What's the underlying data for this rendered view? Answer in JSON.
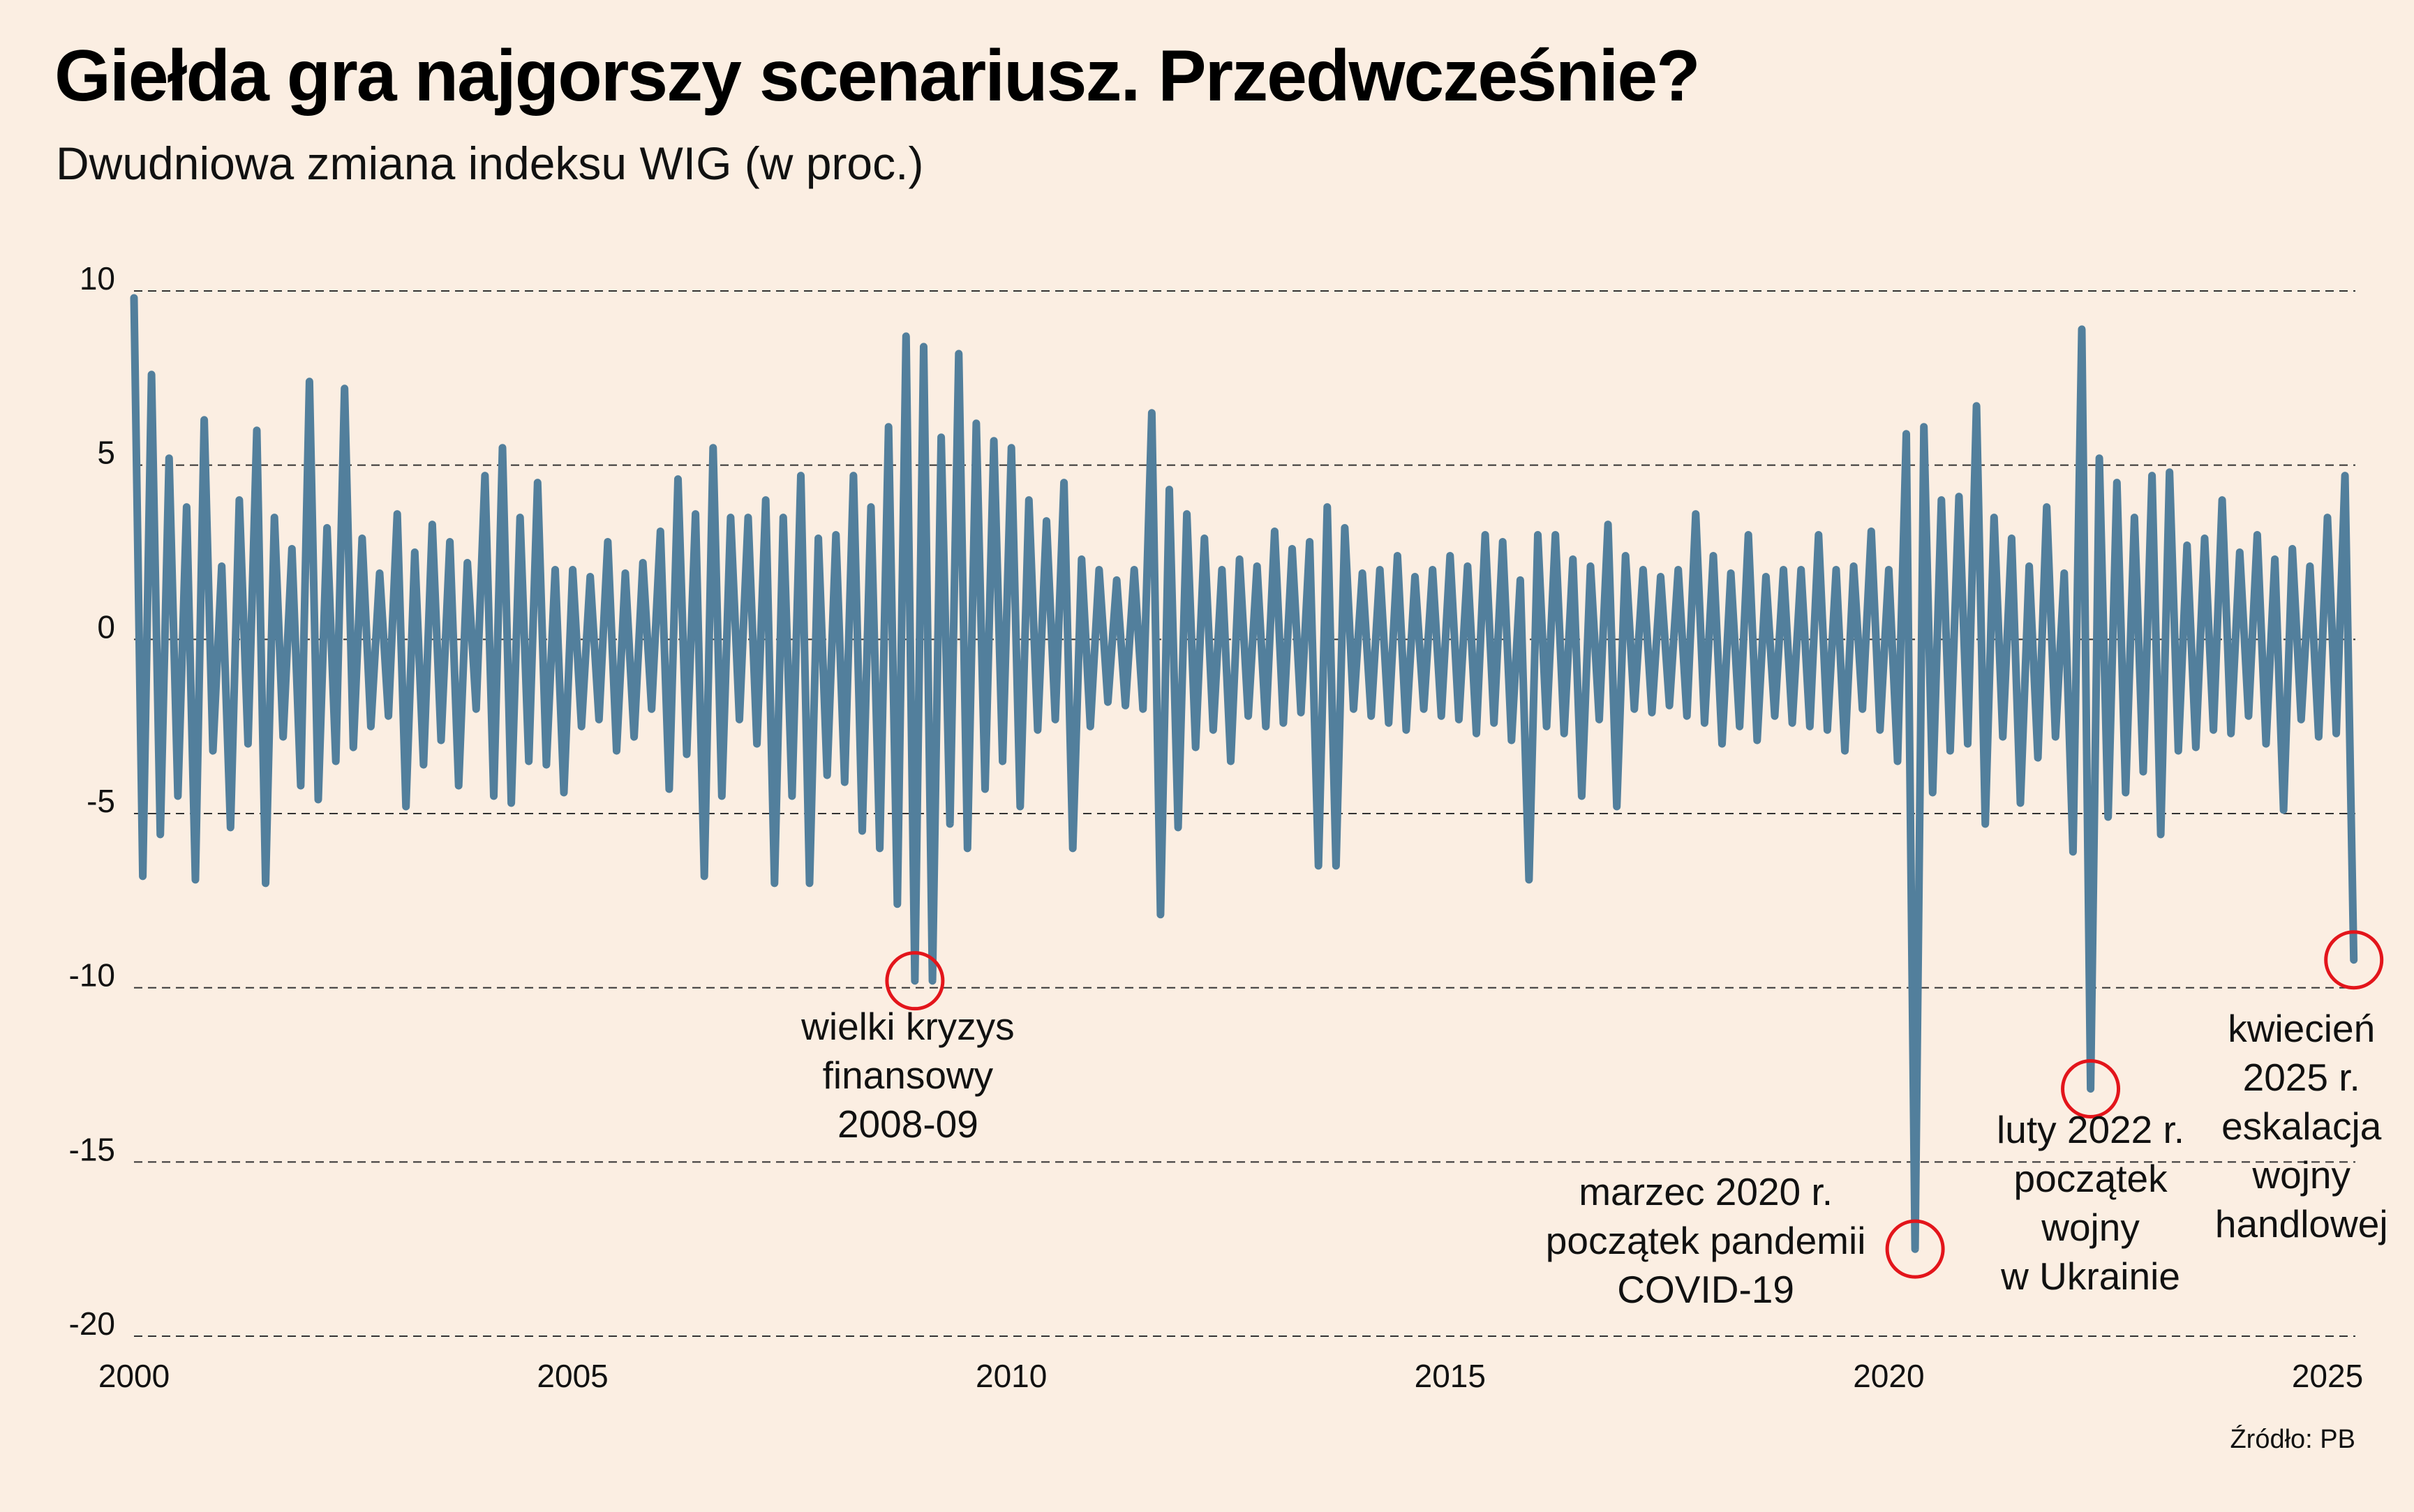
{
  "chart_data": {
    "type": "line",
    "title": "Giełda gra najgorszy scenariusz. Przedwcześnie?",
    "subtitle": "Dwudniowa zmiana indeksu WIG (w proc.)",
    "xlabel": "",
    "ylabel": "",
    "xlim": [
      2000,
      2025.4
    ],
    "ylim": [
      -20,
      10
    ],
    "grid": true,
    "y_ticks": [
      10,
      5,
      0,
      -5,
      -10,
      -15,
      -20
    ],
    "y_tick_labels": [
      "10",
      "5",
      "0",
      "-5",
      "-10",
      "-15",
      "-20"
    ],
    "x_ticks": [
      2000,
      2005,
      2010,
      2015,
      2020,
      2025
    ],
    "x_tick_labels": [
      "2000",
      "2005",
      "2010",
      "2015",
      "2020",
      "2025"
    ],
    "series": [
      {
        "name": "WIG 2-day change (%)",
        "color": "#527f9c",
        "x_start": 2000,
        "x_step": 0.1,
        "values": [
          9.8,
          -6.8,
          7.6,
          -5.6,
          5.2,
          -4.5,
          3.8,
          -6.9,
          6.3,
          -3.2,
          2.1,
          -5.4,
          4.0,
          -3.0,
          6.0,
          -7.0,
          3.5,
          -2.8,
          2.6,
          -4.2,
          7.4,
          -4.6,
          3.2,
          -3.5,
          7.2,
          -3.1,
          2.9,
          -2.5,
          1.9,
          -2.2,
          3.6,
          -4.8,
          2.5,
          -3.6,
          3.3,
          -2.9,
          2.8,
          -4.2,
          2.2,
          -2.0,
          4.7,
          -4.5,
          5.5,
          -4.7,
          3.5,
          -3.5,
          4.5,
          -3.6,
          2.0,
          -4.4,
          2.0,
          -2.5,
          1.8,
          -2.3,
          2.8,
          -3.2,
          1.9,
          -2.8,
          2.2,
          -2.0,
          3.1,
          -4.3,
          4.6,
          -3.3,
          3.6,
          -6.8,
          5.5,
          -4.5,
          3.5,
          -2.3,
          3.5,
          -3.0,
          4.0,
          -7.0,
          3.5,
          -4.5,
          4.7,
          -7.0,
          2.9,
          -3.9,
          3.0,
          -4.1,
          4.7,
          -5.5,
          3.8,
          -6.0,
          6.1,
          -7.6,
          8.7,
          -9.8,
          8.4,
          -9.8,
          5.8,
          -5.3,
          8.2,
          -6.0,
          6.2,
          -4.3,
          5.7,
          -3.5,
          5.5,
          -4.8,
          4.0,
          -2.6,
          3.4,
          -2.3,
          4.5,
          -6.0,
          2.3,
          -2.5,
          2.0,
          -1.8,
          1.7,
          -1.9,
          2.0,
          -2.0,
          6.5,
          -7.9,
          4.3,
          -5.4,
          3.6,
          -3.1,
          2.9,
          -2.6,
          2.0,
          -3.5,
          2.3,
          -2.2,
          2.1,
          -2.5,
          3.1,
          -2.4,
          2.6,
          -2.1,
          2.8,
          -6.5,
          3.8,
          -6.5,
          3.2,
          -2.0,
          1.9,
          -2.2,
          2.0,
          -2.4,
          2.4,
          -2.6,
          1.8,
          -2.0,
          2.0,
          -2.2,
          2.4,
          -2.3,
          2.1,
          -2.7,
          3.0,
          -2.4,
          2.8,
          -2.9,
          1.7,
          -6.9,
          3.0,
          -2.5,
          3.0,
          -2.7,
          2.3,
          -4.5,
          2.1,
          -2.3,
          3.3,
          -4.8,
          2.4,
          -2.0,
          2.0,
          -2.1,
          1.8,
          -1.9,
          2.0,
          -2.2,
          3.6,
          -2.4,
          2.4,
          -3.0,
          1.9,
          -2.5,
          3.0,
          -2.9,
          1.8,
          -2.2,
          2.0,
          -2.4,
          2.0,
          -2.5,
          3.0,
          -2.6,
          2.0,
          -3.2,
          2.1,
          -2.0,
          3.1,
          -2.6,
          2.0,
          -3.5,
          5.9,
          -17.5,
          6.1,
          -4.4,
          4.0,
          -3.2,
          4.1,
          -3.0,
          6.7,
          -5.3,
          3.5,
          -2.8,
          2.9,
          -4.7,
          2.1,
          -3.4,
          3.8,
          -2.8,
          1.9,
          -6.1,
          8.9,
          -12.9,
          5.2,
          -5.1,
          4.5,
          -4.4,
          3.5,
          -3.8,
          4.7,
          -5.6,
          4.8,
          -3.2,
          2.7,
          -3.1,
          2.9,
          -2.6,
          4.0,
          -2.7,
          2.5,
          -2.2,
          3.0,
          -3.0,
          2.3,
          -4.9,
          2.6,
          -2.3,
          2.1,
          -2.8,
          3.5,
          -2.7,
          4.7,
          -9.2
        ]
      }
    ],
    "annotations": [
      {
        "x": 2008.9,
        "y": -9.8,
        "lines": [
          "wielki kryzys",
          "finansowy",
          "2008-09"
        ]
      },
      {
        "x": 2020.3,
        "y": -17.5,
        "lines": [
          "marzec 2020 r.",
          "początek pandemii",
          "COVID-19"
        ]
      },
      {
        "x": 2022.3,
        "y": -12.9,
        "lines": [
          "luty 2022 r.",
          "początek",
          "wojny",
          "w Ukrainie"
        ]
      },
      {
        "x": 2025.3,
        "y": -9.2,
        "lines": [
          "kwiecień",
          "2025 r.",
          "eskalacja",
          "wojny",
          "handlowej"
        ]
      }
    ],
    "annotation_color": "#e3151b",
    "source": "Źródło: PB"
  }
}
